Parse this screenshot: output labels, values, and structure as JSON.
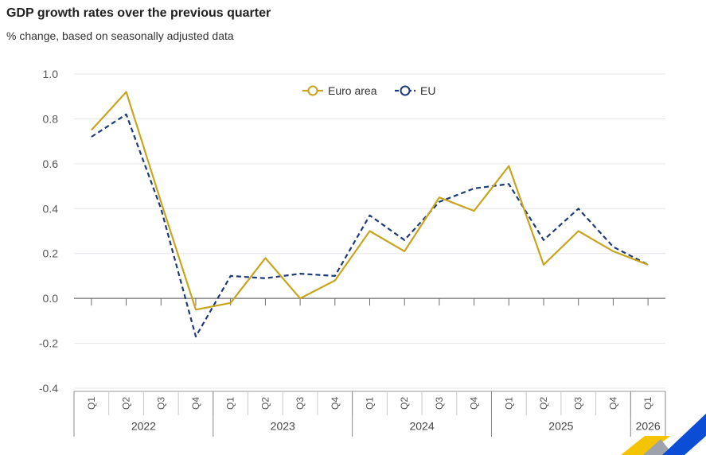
{
  "chart_data": {
    "type": "line",
    "title": "GDP growth rates over the previous quarter",
    "subtitle": "% change, based on seasonally adjusted data",
    "ylim": [
      -0.4,
      1.0
    ],
    "yticks": [
      "1.0",
      "0.8",
      "0.6",
      "0.4",
      "0.2",
      "0.0",
      "-0.2",
      "-0.4"
    ],
    "categories": [
      "Q1",
      "Q2",
      "Q3",
      "Q4",
      "Q1",
      "Q2",
      "Q3",
      "Q4",
      "Q1",
      "Q2",
      "Q3",
      "Q4",
      "Q1",
      "Q2",
      "Q3",
      "Q4",
      "Q1"
    ],
    "years": [
      {
        "label": "2022",
        "count": 4
      },
      {
        "label": "2023",
        "count": 4
      },
      {
        "label": "2024",
        "count": 4
      },
      {
        "label": "2025",
        "count": 4
      },
      {
        "label": "2026",
        "count": 1
      }
    ],
    "legend_position": "top-center",
    "series": [
      {
        "name": "Euro area",
        "color": "#c9a51e",
        "dashed": false,
        "values": [
          0.75,
          0.92,
          0.43,
          -0.05,
          -0.02,
          0.18,
          0.0,
          0.08,
          0.3,
          0.21,
          0.45,
          0.39,
          0.59,
          0.15,
          0.3,
          0.21,
          0.15
        ]
      },
      {
        "name": "EU",
        "color": "#1f3a7a",
        "dashed": true,
        "values": [
          0.72,
          0.82,
          0.4,
          -0.17,
          0.1,
          0.09,
          0.11,
          0.1,
          0.37,
          0.26,
          0.43,
          0.49,
          0.51,
          0.26,
          0.4,
          0.23,
          0.15
        ]
      }
    ]
  }
}
